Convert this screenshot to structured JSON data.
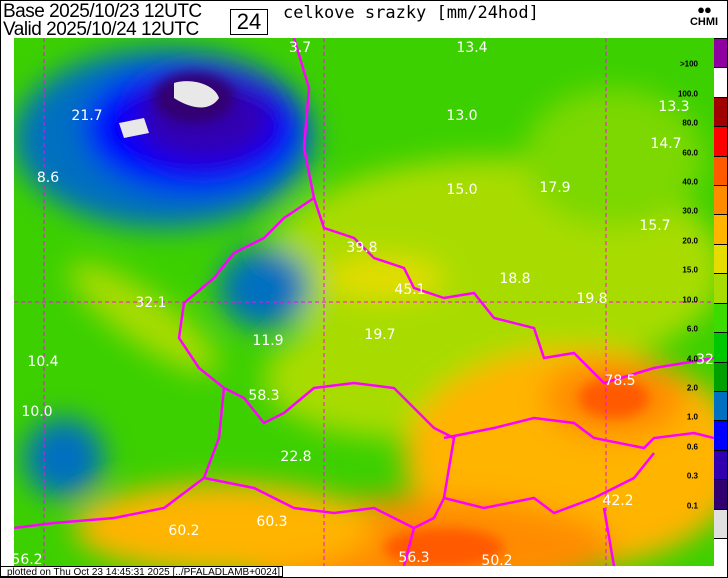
{
  "header": {
    "base_label": "Base",
    "base_value": "2025/10/23 12UTC",
    "valid_label": "Valid",
    "valid_value": "2025/10/24 12UTC",
    "forecast_hours": "24",
    "title": "celkove srazky [mm/24hod]",
    "logo_text": "CHMI"
  },
  "map": {
    "border_color": "#ff00ff",
    "labels": [
      "3.7",
      "13.4",
      "21.7",
      "13.0",
      "13.3",
      "14.7",
      "8.6",
      "15.0",
      "17.9",
      "15.7",
      "39.8",
      "18.8",
      "45.1",
      "19.8",
      "32.1",
      "19.7",
      "11.9",
      "10.4",
      "32",
      "78.5",
      "10.0",
      "58.3",
      "22.8",
      "42.2",
      "60.2",
      "60.3",
      "56.2",
      "56.3",
      "50.2"
    ]
  },
  "legend": {
    "colors": [
      "#8e00a0",
      "#ffffff",
      "#a00000",
      "#ff0000",
      "#ff5a00",
      "#ff8c00",
      "#ffb400",
      "#e6dc00",
      "#a8dc00",
      "#3cdc00",
      "#00c800",
      "#00a000",
      "#0070c0",
      "#0000ff",
      "#3000b0",
      "#300070",
      "#e0e0e0"
    ],
    "labels": [
      ">100",
      "100.0",
      "80.0",
      "60.0",
      "40.0",
      "30.0",
      "20.0",
      "15.0",
      "10.0",
      "6.0",
      "4.0",
      "2.0",
      "1.0",
      "0.6",
      "0.3",
      "0.1"
    ]
  },
  "footer": {
    "text": "plotted on Thu Oct 23 14:45:31 2025 [../PFALADLAMB+0024]"
  }
}
